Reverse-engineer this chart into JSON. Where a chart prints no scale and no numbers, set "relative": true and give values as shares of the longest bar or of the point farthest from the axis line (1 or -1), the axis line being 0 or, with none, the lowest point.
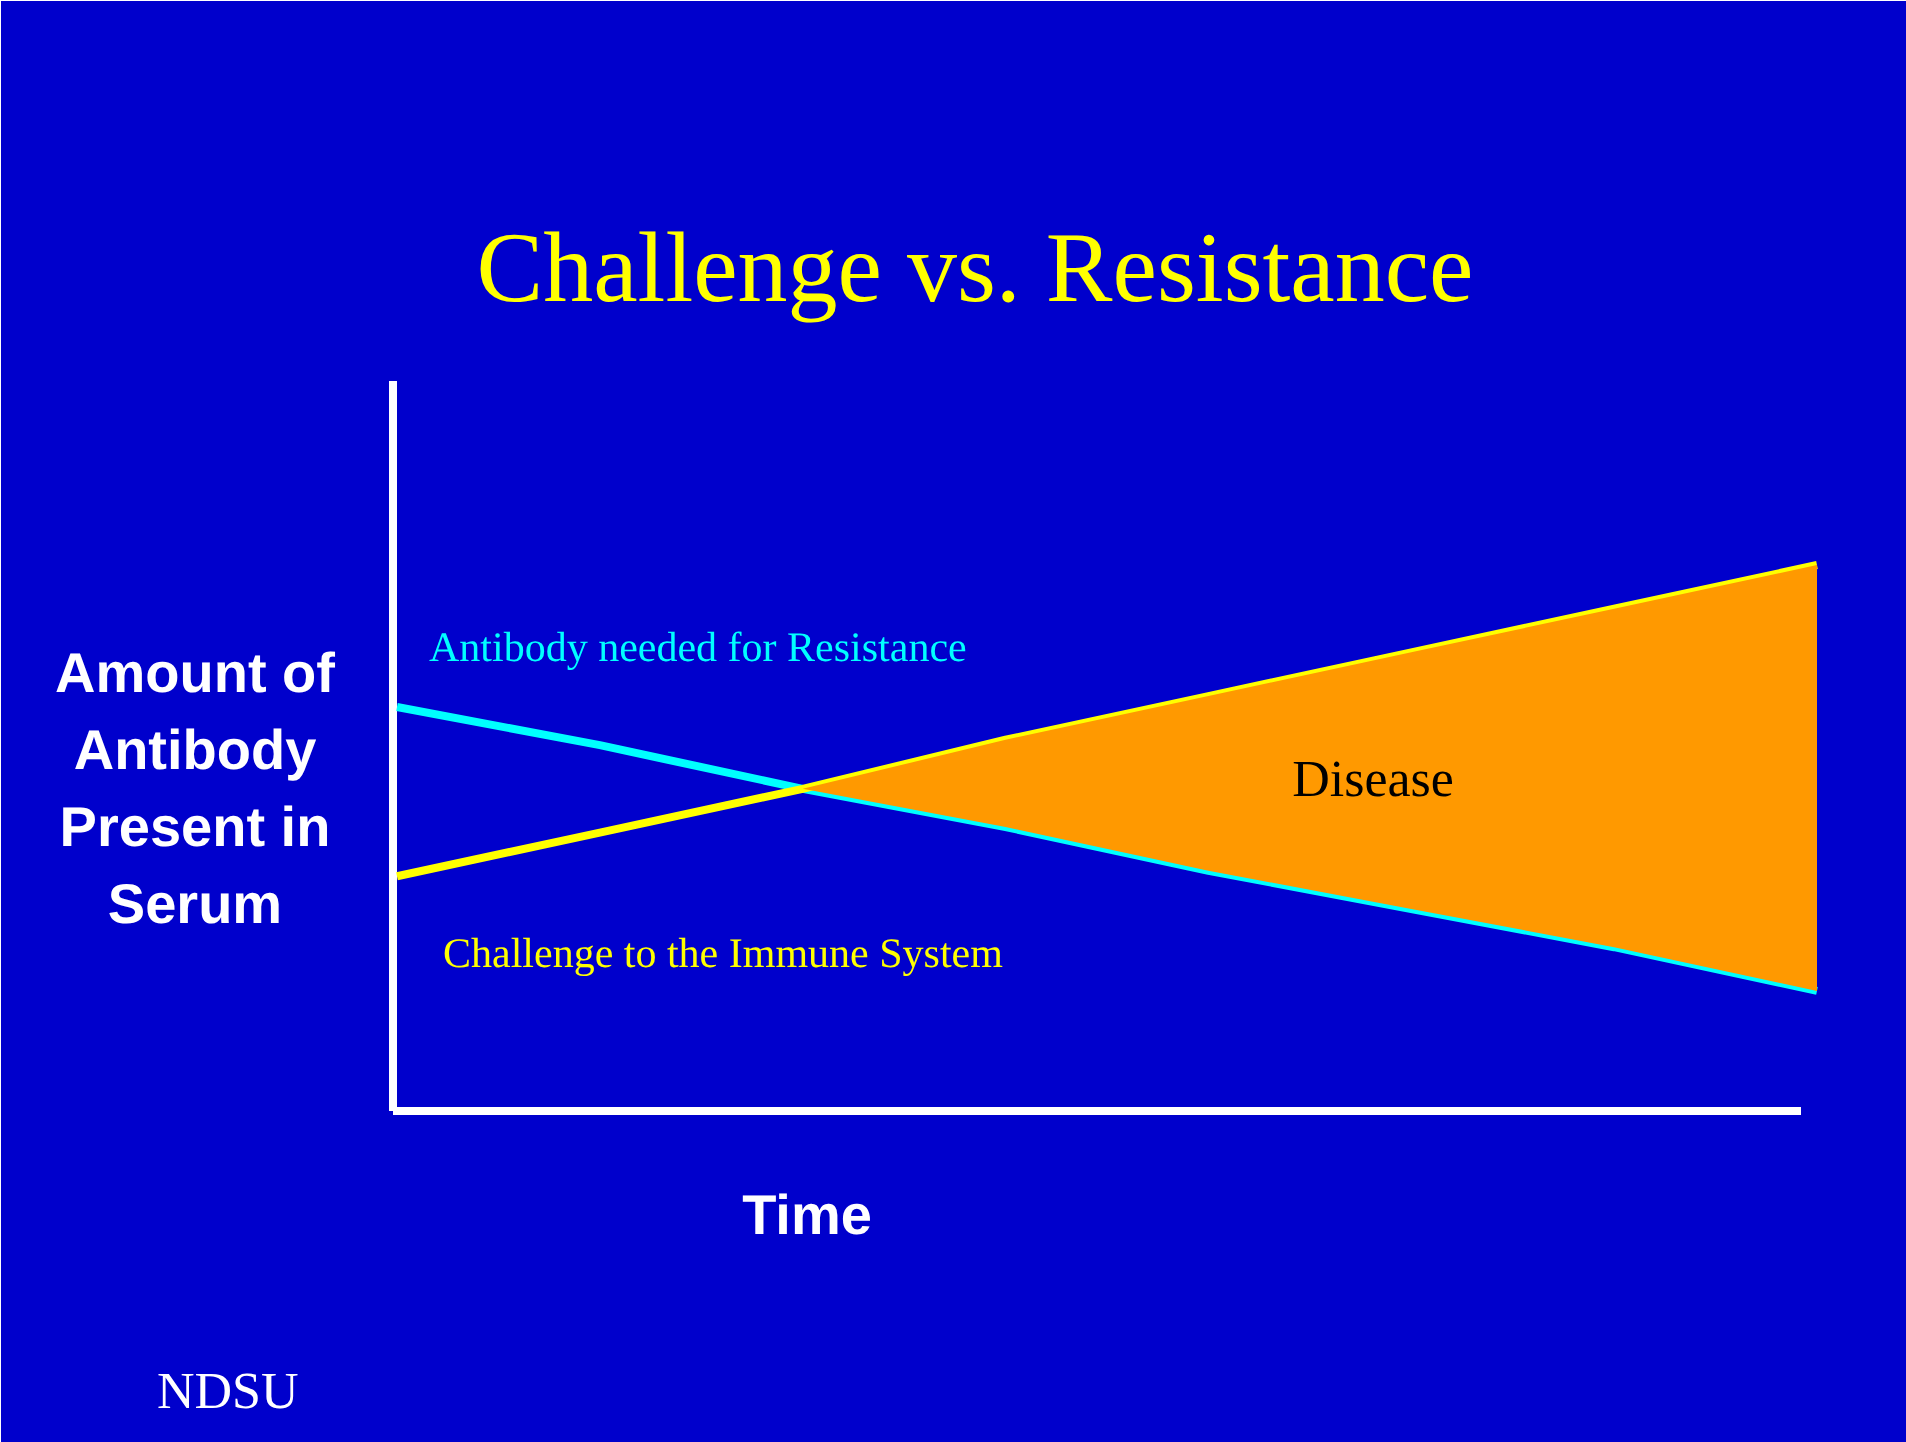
{
  "chart_data": {
    "type": "line",
    "title": "Challenge vs. Resistance",
    "xlabel": "Time",
    "ylabel": "Amount of Antibody Present in Serum",
    "relative": true,
    "categories": [
      null,
      null,
      null,
      null,
      null,
      null,
      null,
      null
    ],
    "grid": false,
    "marker": "none",
    "line_style": "solid",
    "series": [
      {
        "name": "Antibody needed for Resistance",
        "color": "#00ffff",
        "values": [
          0.74,
          0.67,
          0.59,
          0.52,
          0.44,
          0.37,
          0.3,
          0.22
        ]
      },
      {
        "name": "Challenge to the Immune System",
        "color": "#ffff00",
        "values": [
          0.43,
          0.51,
          0.59,
          0.68,
          0.76,
          0.84,
          0.92,
          1.0
        ]
      },
      {
        "type": "area",
        "color": "#ff9900",
        "values": [
          null,
          null,
          0.59,
          0.68,
          0.76,
          0.84,
          0.92,
          1.0
        ]
      }
    ],
    "annotations": [
      "Disease",
      "NDSU"
    ]
  }
}
